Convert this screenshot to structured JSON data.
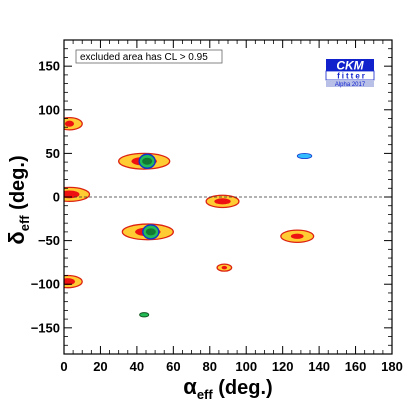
{
  "chart_data": {
    "type": "contour",
    "xlabel": {
      "main": "α",
      "sub": "eff",
      "tail": " (deg.)"
    },
    "ylabel": {
      "main": "δ",
      "sub": "eff",
      "tail": " (deg.)"
    },
    "xlim": [
      0,
      180
    ],
    "ylim": [
      -180,
      180
    ],
    "xticks": [
      0,
      20,
      40,
      60,
      80,
      100,
      120,
      140,
      160,
      180
    ],
    "yticks": [
      -150,
      -100,
      -50,
      0,
      50,
      100,
      150
    ],
    "reference_line_y": 0,
    "annotation": "excluded area has CL > 0.95",
    "logo": {
      "line1": "CKM",
      "line2": "fitter",
      "line3": "Alpha 2017"
    },
    "colors": {
      "outer_fill": "#ffcc33",
      "outer_edge": "#dd2211",
      "inner_fill": "#ee1111",
      "green": "#22bb55",
      "blue": "#1133cc",
      "cyan": "#33bbff"
    },
    "regions": [
      {
        "x": 3,
        "y": 84,
        "rx": 7,
        "ry": 7,
        "inner_rx": 2.5,
        "inner_ry": 3.5
      },
      {
        "x": 3,
        "y": 3,
        "rx": 11,
        "ry": 8,
        "inner_rx": 5.5,
        "inner_ry": 4.5
      },
      {
        "x": 2,
        "y": -97,
        "rx": 8,
        "ry": 7,
        "inner_rx": 4,
        "inner_ry": 4
      },
      {
        "x": 44,
        "y": 41,
        "rx": 14,
        "ry": 9,
        "inner_rx": 7,
        "inner_ry": 5,
        "green": true,
        "blue": true
      },
      {
        "x": 46,
        "y": -40,
        "rx": 14,
        "ry": 9,
        "inner_rx": 7,
        "inner_ry": 5,
        "green": true,
        "blue": true
      },
      {
        "x": 87,
        "y": -5,
        "rx": 9,
        "ry": 7,
        "inner_rx": 4.5,
        "inner_ry": 3.5
      },
      {
        "x": 128,
        "y": -45,
        "rx": 9,
        "ry": 7,
        "inner_rx": 3.5,
        "inner_ry": 3
      },
      {
        "x": 88,
        "y": -81,
        "rx": 4,
        "ry": 4,
        "inner_rx": 1.5,
        "inner_ry": 2
      }
    ],
    "small_green_island": {
      "x": 44,
      "y": -135,
      "rx": 2.5,
      "ry": 2.5
    },
    "cyan_island": {
      "x": 132,
      "y": 47,
      "rx": 4,
      "ry": 3
    }
  }
}
